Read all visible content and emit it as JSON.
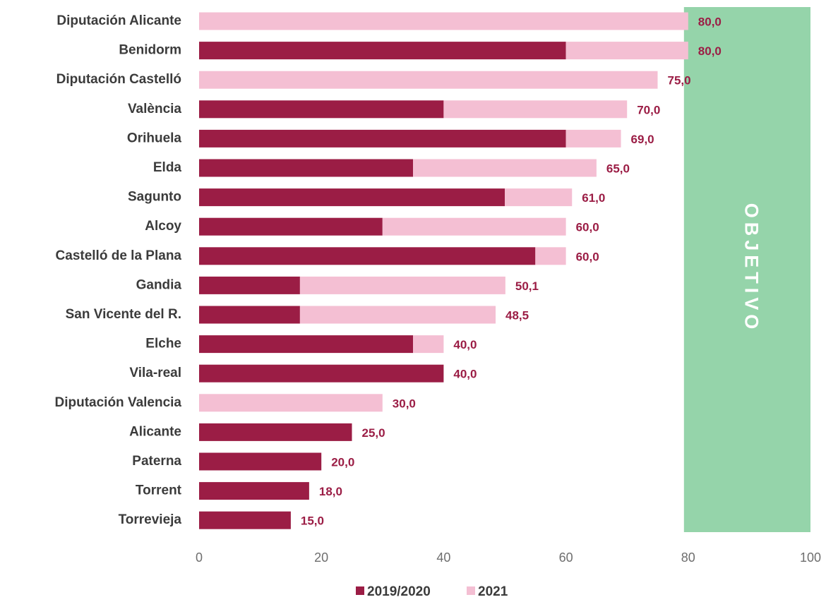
{
  "chart_data": {
    "type": "bar",
    "orientation": "horizontal",
    "stacked": true,
    "title": "",
    "xlabel": "",
    "ylabel": "",
    "xlim": [
      0,
      100
    ],
    "ticks": [
      "0",
      "20",
      "40",
      "60",
      "80",
      "100"
    ],
    "tick_values": [
      0,
      20,
      40,
      60,
      80,
      100
    ],
    "grid": false,
    "legend_position": "bottom",
    "target_band": {
      "label": "OBJETIVO",
      "from": 80,
      "to": 100,
      "color": "#95d4aa"
    },
    "categories": [
      "Diputación Alicante",
      "Benidorm",
      "Diputación Castelló",
      "València",
      "Orihuela",
      "Elda",
      "Sagunto",
      "Alcoy",
      "Castelló de la Plana",
      "Gandia",
      "San Vicente del R.",
      "Elche",
      "Vila-real",
      "Diputación Valencia",
      "Alicante",
      "Paterna",
      "Torrent",
      "Torrevieja"
    ],
    "series": [
      {
        "name": "2019/2020",
        "color": "#9b1d45",
        "values": [
          0,
          60,
          0,
          40,
          60,
          35,
          50,
          30,
          55,
          16.5,
          16.5,
          35,
          40,
          0,
          25,
          20,
          18,
          15
        ]
      },
      {
        "name": "2021",
        "color": "#f4bfd3",
        "values": [
          80,
          20,
          75,
          30,
          9,
          30,
          11,
          30,
          5,
          33.6,
          32,
          5,
          0,
          30,
          0,
          0,
          0,
          0
        ]
      }
    ],
    "data_labels": [
      "80,0",
      "80,0",
      "75,0",
      "70,0",
      "69,0",
      "65,0",
      "61,0",
      "60,0",
      "60,0",
      "50,1",
      "48,5",
      "40,0",
      "40,0",
      "30,0",
      "25,0",
      "20,0",
      "18,0",
      "15,0"
    ],
    "data_label_color": "#9b1d45"
  }
}
